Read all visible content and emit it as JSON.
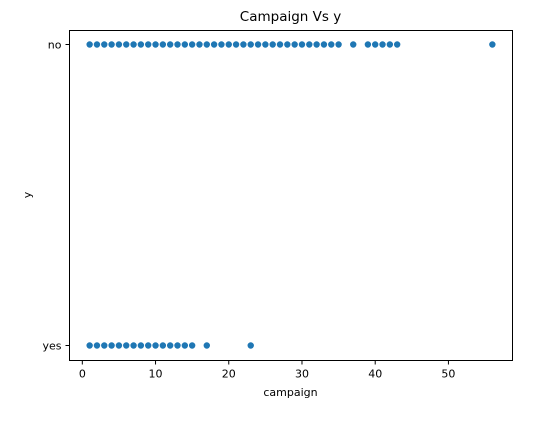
{
  "chart_data": {
    "type": "scatter",
    "title": "Campaign Vs y",
    "xlabel": "campaign",
    "ylabel": "y",
    "x_ticks": [
      0,
      10,
      20,
      30,
      40,
      50
    ],
    "y_categories": [
      "yes",
      "no"
    ],
    "grid": false,
    "series": [
      {
        "values": [
          {
            "x": 1,
            "y": "no"
          },
          {
            "x": 2,
            "y": "no"
          },
          {
            "x": 3,
            "y": "no"
          },
          {
            "x": 4,
            "y": "no"
          },
          {
            "x": 5,
            "y": "no"
          },
          {
            "x": 6,
            "y": "no"
          },
          {
            "x": 7,
            "y": "no"
          },
          {
            "x": 8,
            "y": "no"
          },
          {
            "x": 9,
            "y": "no"
          },
          {
            "x": 10,
            "y": "no"
          },
          {
            "x": 11,
            "y": "no"
          },
          {
            "x": 12,
            "y": "no"
          },
          {
            "x": 13,
            "y": "no"
          },
          {
            "x": 14,
            "y": "no"
          },
          {
            "x": 15,
            "y": "no"
          },
          {
            "x": 16,
            "y": "no"
          },
          {
            "x": 17,
            "y": "no"
          },
          {
            "x": 18,
            "y": "no"
          },
          {
            "x": 19,
            "y": "no"
          },
          {
            "x": 20,
            "y": "no"
          },
          {
            "x": 21,
            "y": "no"
          },
          {
            "x": 22,
            "y": "no"
          },
          {
            "x": 23,
            "y": "no"
          },
          {
            "x": 24,
            "y": "no"
          },
          {
            "x": 25,
            "y": "no"
          },
          {
            "x": 26,
            "y": "no"
          },
          {
            "x": 27,
            "y": "no"
          },
          {
            "x": 28,
            "y": "no"
          },
          {
            "x": 29,
            "y": "no"
          },
          {
            "x": 30,
            "y": "no"
          },
          {
            "x": 31,
            "y": "no"
          },
          {
            "x": 32,
            "y": "no"
          },
          {
            "x": 33,
            "y": "no"
          },
          {
            "x": 34,
            "y": "no"
          },
          {
            "x": 35,
            "y": "no"
          },
          {
            "x": 37,
            "y": "no"
          },
          {
            "x": 39,
            "y": "no"
          },
          {
            "x": 40,
            "y": "no"
          },
          {
            "x": 41,
            "y": "no"
          },
          {
            "x": 42,
            "y": "no"
          },
          {
            "x": 43,
            "y": "no"
          },
          {
            "x": 56,
            "y": "no"
          },
          {
            "x": 1,
            "y": "yes"
          },
          {
            "x": 2,
            "y": "yes"
          },
          {
            "x": 3,
            "y": "yes"
          },
          {
            "x": 4,
            "y": "yes"
          },
          {
            "x": 5,
            "y": "yes"
          },
          {
            "x": 6,
            "y": "yes"
          },
          {
            "x": 7,
            "y": "yes"
          },
          {
            "x": 8,
            "y": "yes"
          },
          {
            "x": 9,
            "y": "yes"
          },
          {
            "x": 10,
            "y": "yes"
          },
          {
            "x": 11,
            "y": "yes"
          },
          {
            "x": 12,
            "y": "yes"
          },
          {
            "x": 13,
            "y": "yes"
          },
          {
            "x": 14,
            "y": "yes"
          },
          {
            "x": 15,
            "y": "yes"
          },
          {
            "x": 17,
            "y": "yes"
          },
          {
            "x": 23,
            "y": "yes"
          }
        ]
      }
    ],
    "xlim": [
      -1.75,
      58.75
    ],
    "marker_color": "#1f77b4"
  }
}
